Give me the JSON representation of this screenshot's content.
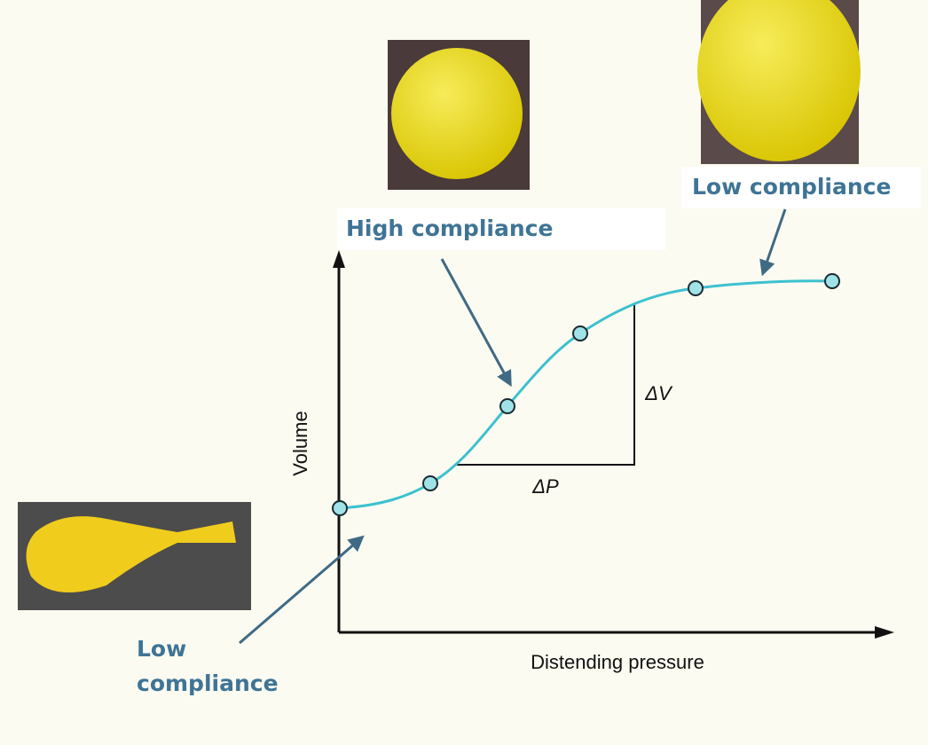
{
  "axes": {
    "y_label": "Volume",
    "x_label": "Distending pressure"
  },
  "deltas": {
    "volume": "ΔV",
    "pressure": "ΔP"
  },
  "callouts": {
    "high": "High compliance",
    "low_top": "Low compliance",
    "low_bottom": [
      "Low",
      "compliance"
    ]
  }
}
